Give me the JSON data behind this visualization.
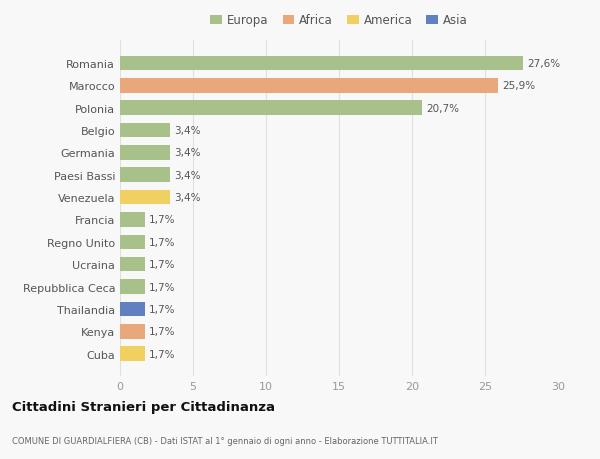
{
  "countries": [
    "Romania",
    "Marocco",
    "Polonia",
    "Belgio",
    "Germania",
    "Paesi Bassi",
    "Venezuela",
    "Francia",
    "Regno Unito",
    "Ucraina",
    "Repubblica Ceca",
    "Thailandia",
    "Kenya",
    "Cuba"
  ],
  "values": [
    27.6,
    25.9,
    20.7,
    3.4,
    3.4,
    3.4,
    3.4,
    1.7,
    1.7,
    1.7,
    1.7,
    1.7,
    1.7,
    1.7
  ],
  "labels": [
    "27,6%",
    "25,9%",
    "20,7%",
    "3,4%",
    "3,4%",
    "3,4%",
    "3,4%",
    "1,7%",
    "1,7%",
    "1,7%",
    "1,7%",
    "1,7%",
    "1,7%",
    "1,7%"
  ],
  "continents": [
    "Europa",
    "Africa",
    "Europa",
    "Europa",
    "Europa",
    "Europa",
    "America",
    "Europa",
    "Europa",
    "Europa",
    "Europa",
    "Asia",
    "Africa",
    "America"
  ],
  "colors": {
    "Europa": "#a8c08a",
    "Africa": "#e8a87c",
    "America": "#f0d060",
    "Asia": "#6080c0"
  },
  "xlim": [
    0,
    30
  ],
  "xticks": [
    0,
    5,
    10,
    15,
    20,
    25,
    30
  ],
  "title": "Cittadini Stranieri per Cittadinanza",
  "subtitle": "COMUNE DI GUARDIALFIERA (CB) - Dati ISTAT al 1° gennaio di ogni anno - Elaborazione TUTTITALIA.IT",
  "background_color": "#f8f8f8",
  "bar_height": 0.65,
  "grid_color": "#e0e0e0",
  "legend_order": [
    "Europa",
    "Africa",
    "America",
    "Asia"
  ]
}
